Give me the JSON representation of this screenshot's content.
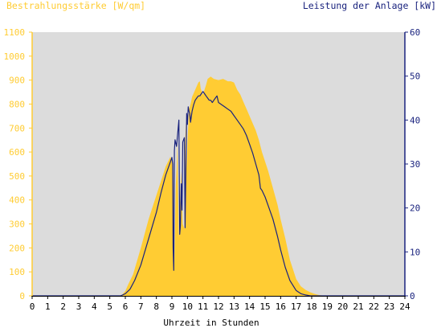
{
  "chart_data": {
    "type": "area",
    "left_title": "Bestrahlungsstärke [W/qm]",
    "right_title": "Leistung der Anlage [kW]",
    "xlabel": "Uhrzeit in Stunden",
    "x_ticks": [
      "0",
      "1",
      "2",
      "3",
      "4",
      "5",
      "6",
      "7",
      "8",
      "9",
      "10",
      "11",
      "12",
      "13",
      "14",
      "15",
      "16",
      "17",
      "18",
      "19",
      "20",
      "21",
      "22",
      "23",
      "24"
    ],
    "xlim": [
      0,
      24
    ],
    "y_left_ticks": [
      "0",
      "100",
      "200",
      "300",
      "400",
      "500",
      "600",
      "700",
      "800",
      "900",
      "1000",
      "1100"
    ],
    "y_left_lim": [
      0,
      1100
    ],
    "y_right_ticks": [
      "0",
      "10",
      "20",
      "30",
      "40",
      "50",
      "60"
    ],
    "y_right_lim": [
      0,
      60
    ],
    "colors": {
      "irradiance_fill": "#ffcc33",
      "left_axis_text": "#ffcc33",
      "right_axis_text": "#1a237e",
      "power_line": "#1a237e",
      "plot_background": "#dcdcdc"
    },
    "series": [
      {
        "axis": "left",
        "kind": "area",
        "x": [
          0,
          5.6,
          5.8,
          6.0,
          6.2,
          6.5,
          7.0,
          7.5,
          8.0,
          8.3,
          8.6,
          8.9,
          9.05,
          9.1,
          9.15,
          9.25,
          9.3,
          9.35,
          9.45,
          9.6,
          9.7,
          9.8,
          9.85,
          9.9,
          9.95,
          10.0,
          10.1,
          10.2,
          10.3,
          10.5,
          10.7,
          10.8,
          10.85,
          11.0,
          11.2,
          11.3,
          11.5,
          11.7,
          12.0,
          12.3,
          12.6,
          12.8,
          13.0,
          13.2,
          13.4,
          13.6,
          13.8,
          14.0,
          14.2,
          14.4,
          14.6,
          14.8,
          15.0,
          15.2,
          15.5,
          15.8,
          16.0,
          16.3,
          16.6,
          17.0,
          17.3,
          17.6,
          17.9,
          18.2,
          18.5,
          18.8,
          19.0,
          19.3,
          24
        ],
        "y": [
          0,
          0,
          5,
          20,
          50,
          90,
          200,
          320,
          420,
          480,
          540,
          580,
          560,
          440,
          110,
          460,
          530,
          640,
          240,
          520,
          300,
          280,
          620,
          720,
          530,
          640,
          780,
          800,
          830,
          860,
          890,
          895,
          865,
          840,
          880,
          905,
          915,
          905,
          900,
          905,
          895,
          895,
          890,
          860,
          840,
          810,
          780,
          750,
          720,
          690,
          650,
          600,
          560,
          520,
          450,
          380,
          320,
          240,
          150,
          70,
          40,
          25,
          15,
          8,
          3,
          1,
          0,
          0,
          0
        ],
        "values_unit": "W/qm"
      },
      {
        "axis": "right",
        "kind": "line",
        "x": [
          0,
          5.7,
          6.0,
          6.3,
          6.6,
          7.0,
          7.5,
          8.0,
          8.3,
          8.6,
          8.9,
          9.0,
          9.05,
          9.08,
          9.12,
          9.16,
          9.2,
          9.3,
          9.4,
          9.45,
          9.5,
          9.55,
          9.6,
          9.65,
          9.7,
          9.75,
          9.8,
          9.85,
          9.9,
          9.95,
          10.0,
          10.05,
          10.1,
          10.15,
          10.2,
          10.3,
          10.4,
          10.5,
          10.6,
          10.7,
          10.8,
          10.9,
          11.0,
          11.1,
          11.2,
          11.3,
          11.4,
          11.5,
          11.6,
          11.7,
          11.8,
          11.9,
          12.0,
          12.2,
          12.4,
          12.6,
          12.8,
          13.0,
          13.2,
          13.4,
          13.6,
          13.8,
          14.0,
          14.2,
          14.4,
          14.6,
          14.7,
          14.8,
          15.0,
          15.2,
          15.5,
          15.8,
          16.0,
          16.3,
          16.6,
          17.0,
          17.3,
          17.6,
          17.9,
          18.2,
          18.5,
          18.8,
          19.0,
          24
        ],
        "y": [
          0,
          0,
          0.5,
          1.5,
          3.5,
          7,
          13,
          19,
          23.5,
          27.5,
          30.5,
          31.5,
          30,
          11,
          5.8,
          33,
          35.5,
          34,
          38,
          40,
          14,
          16,
          25.5,
          19.5,
          35,
          35.5,
          36,
          15.5,
          29,
          41.5,
          39,
          43,
          42,
          41.5,
          39.5,
          42,
          43.5,
          44.5,
          45,
          45.5,
          45.5,
          46,
          46.5,
          46,
          45.5,
          45,
          44.5,
          44.5,
          44,
          44.5,
          45,
          45.5,
          44,
          43.5,
          43,
          42.5,
          42,
          41,
          40,
          39,
          38,
          36.5,
          34.5,
          32.5,
          30,
          27.5,
          24.5,
          24,
          22.5,
          20.5,
          17.5,
          13.5,
          10.5,
          6.5,
          3.5,
          1.2,
          0.5,
          0.2,
          0,
          0,
          0,
          0,
          0,
          0
        ],
        "values_unit": "kW"
      }
    ]
  }
}
